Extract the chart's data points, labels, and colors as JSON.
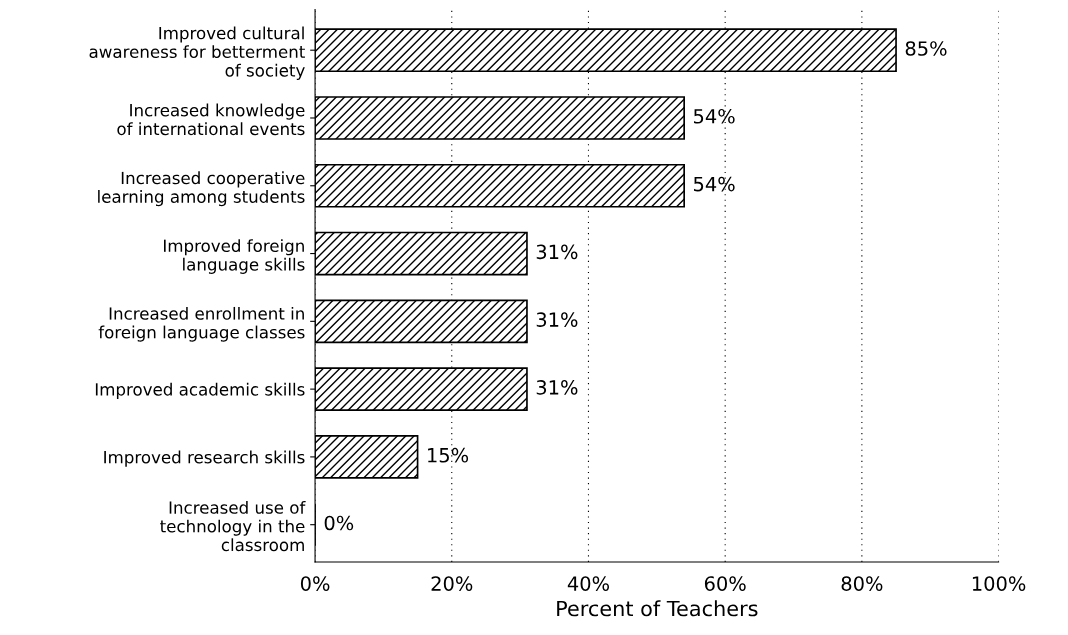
{
  "chart_data": {
    "type": "bar",
    "orientation": "horizontal",
    "categories": [
      "Improved cultural\nawareness for betterment\nof society",
      "Increased knowledge\nof international events",
      "Increased cooperative\nlearning among students",
      "Improved foreign\nlanguage skills",
      "Increased enrollment in\nforeign language classes",
      "Improved academic skills",
      "Improved research skills",
      "Increased use of\ntechnology in the\nclassroom"
    ],
    "values": [
      85,
      54,
      54,
      31,
      31,
      31,
      15,
      0
    ],
    "value_labels": [
      "85%",
      "54%",
      "54%",
      "31%",
      "31%",
      "31%",
      "15%",
      "0%"
    ],
    "color": "#000000",
    "xlabel": "Percent of Teachers",
    "xlim": [
      0,
      100
    ],
    "xticks": [
      {
        "value": 0,
        "label": "0%"
      },
      {
        "value": 20,
        "label": "20%"
      },
      {
        "value": 40,
        "label": "40%"
      },
      {
        "value": 60,
        "label": "60%"
      },
      {
        "value": 80,
        "label": "80%"
      },
      {
        "value": 100,
        "label": "100%"
      }
    ],
    "grid": "x"
  }
}
